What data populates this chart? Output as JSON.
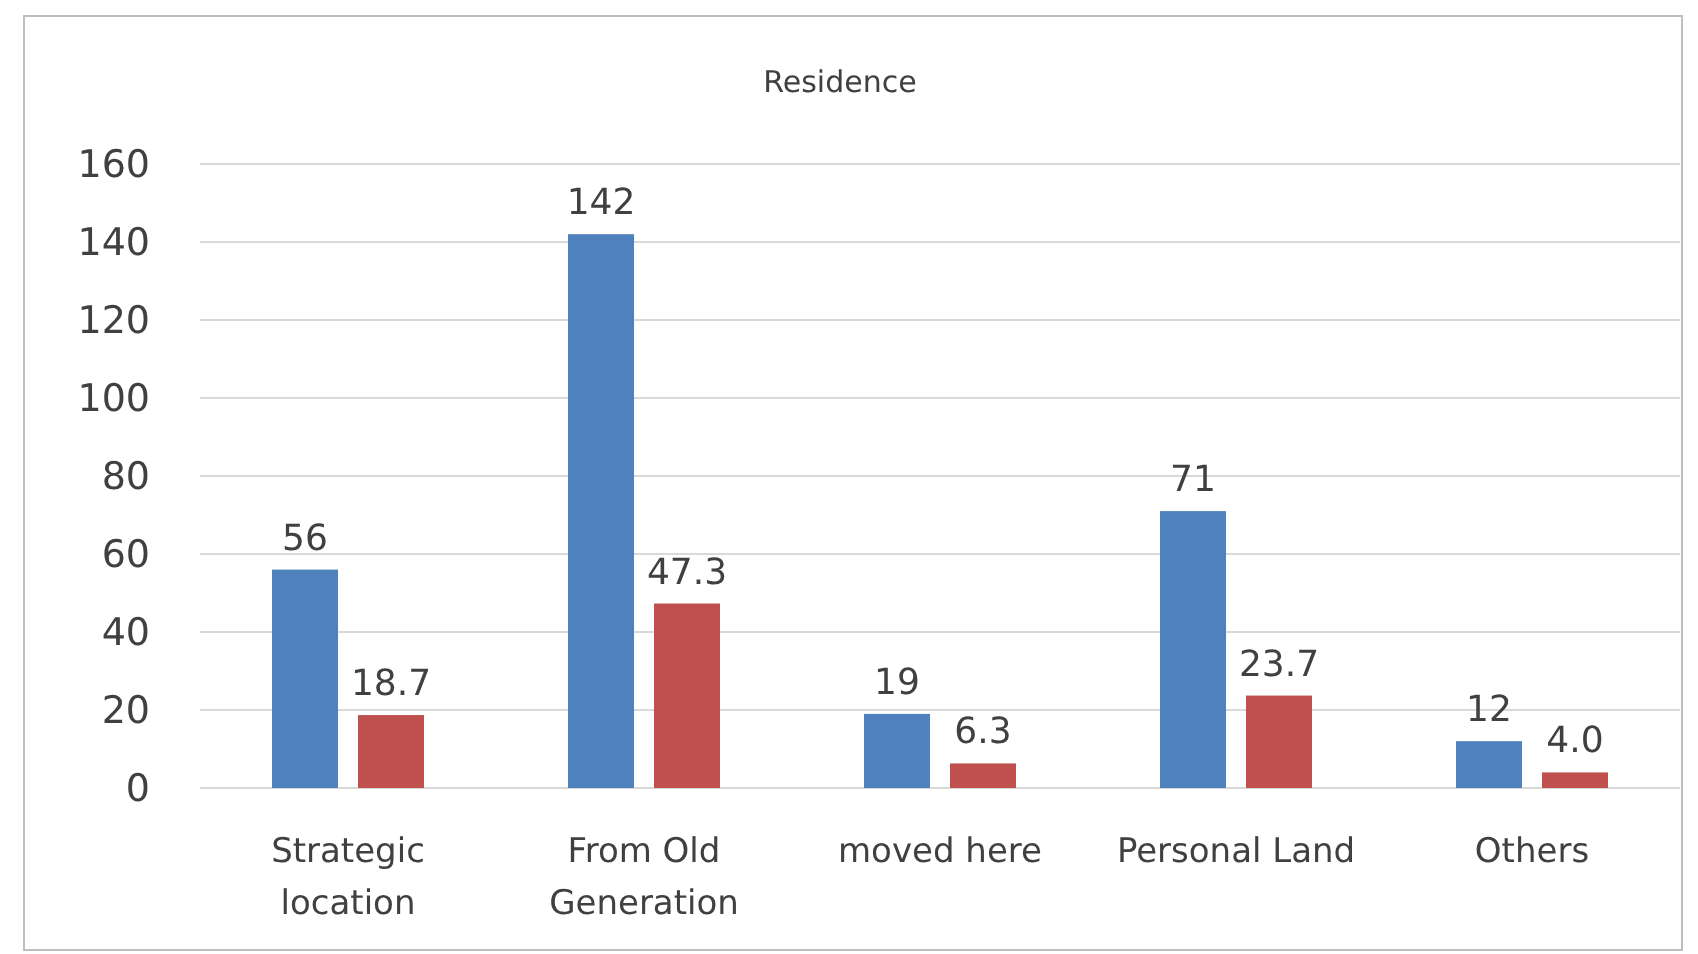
{
  "chart_data": {
    "type": "bar",
    "title": "Residence",
    "categories": [
      "Strategic location",
      "From Old Generation",
      "moved here",
      "Personal Land",
      "Others"
    ],
    "series": [
      {
        "color": "#4f81bd",
        "values": [
          56,
          142,
          19,
          71,
          12
        ],
        "value_labels": [
          "56",
          "142",
          "19",
          "71",
          "12"
        ]
      },
      {
        "color": "#c0504d",
        "values": [
          18.7,
          47.3,
          6.3,
          23.7,
          4.0
        ],
        "value_labels": [
          "18.7",
          "47.3",
          "6.3",
          "23.7",
          "4.0"
        ]
      }
    ],
    "ylim": [
      0,
      160
    ],
    "yticks": [
      0,
      20,
      40,
      60,
      80,
      100,
      120,
      140,
      160
    ],
    "grid": "y"
  }
}
